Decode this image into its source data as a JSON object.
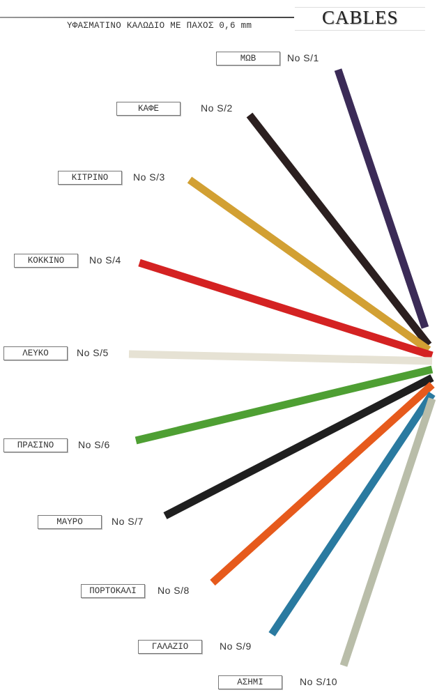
{
  "header": {
    "subtitle": "ΥΦΑΣΜΑΤΙΝΟ ΚΑΛΩΔΙΟ ΜΕ ΠΑΧΟΣ 0,6 mm",
    "title": "CABLES"
  },
  "cables": [
    {
      "name": "ΜΩΒ",
      "code": "No S/1",
      "color": "#3b2b57"
    },
    {
      "name": "ΚΑΦΕ",
      "code": "No S/2",
      "color": "#2b1f1f"
    },
    {
      "name": "ΚΙΤΡΙΝΟ",
      "code": "No S/3",
      "color": "#d2a033"
    },
    {
      "name": "ΚΟΚΚΙΝΟ",
      "code": "No S/4",
      "color": "#d42222"
    },
    {
      "name": "ΛΕΥΚΟ",
      "code": "No S/5",
      "color": "#e6e2d4"
    },
    {
      "name": "ΠΡΑΣΙΝΟ",
      "code": "No S/6",
      "color": "#4e9f33"
    },
    {
      "name": "ΜΑΥΡΟ",
      "code": "No S/7",
      "color": "#1f1f1f"
    },
    {
      "name": "ΠΟΡΤΟΚΑΛΙ",
      "code": "No S/8",
      "color": "#e65a1c"
    },
    {
      "name": "ΓΑΛΑΖΙΟ",
      "code": "No S/9",
      "color": "#2a7aa0"
    },
    {
      "name": "ΑΣΗΜΙ",
      "code": "No S/10",
      "color": "#b9bda9"
    }
  ]
}
